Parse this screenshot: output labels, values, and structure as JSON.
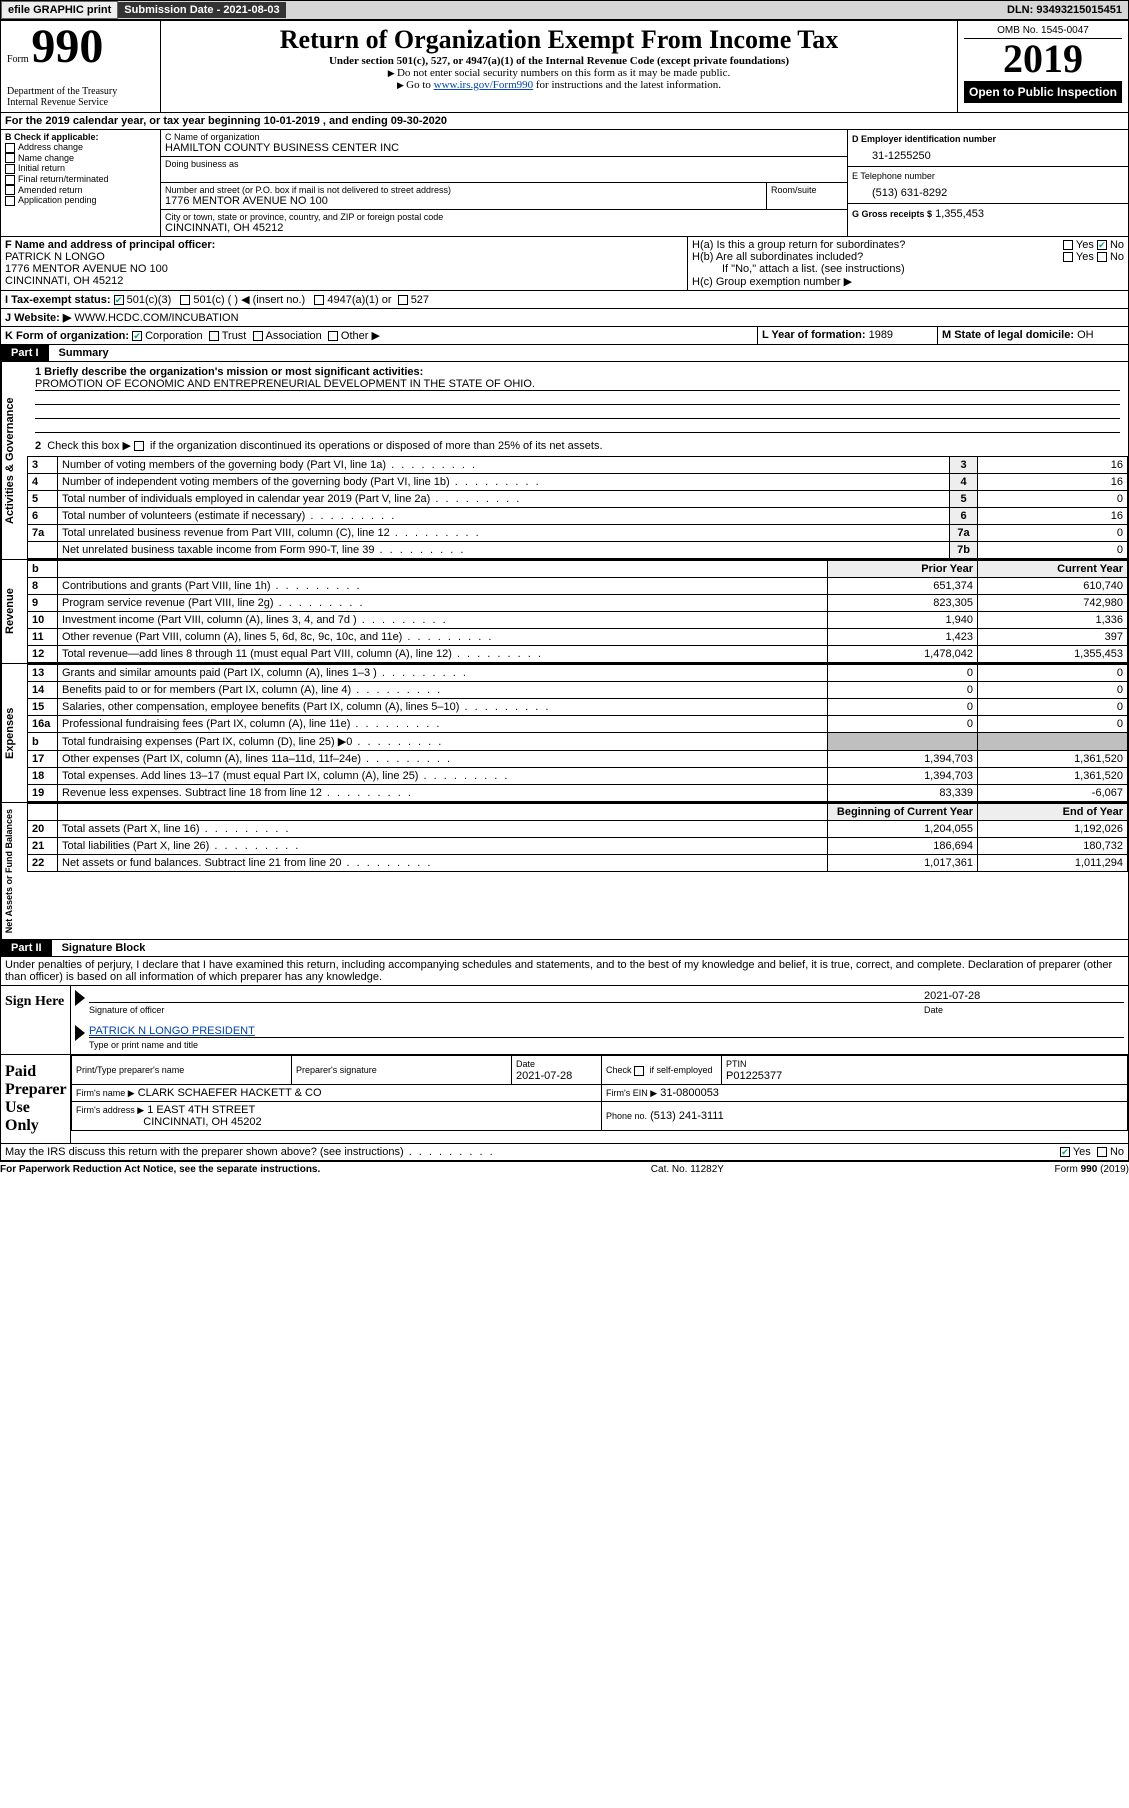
{
  "topbar": {
    "efile": "efile GRAPHIC print",
    "submission_label": "Submission Date - 2021-08-03",
    "dln": "DLN: 93493215015451"
  },
  "header": {
    "form_word": "Form",
    "form_num": "990",
    "dept1": "Department of the Treasury",
    "dept2": "Internal Revenue Service",
    "title": "Return of Organization Exempt From Income Tax",
    "subtitle": "Under section 501(c), 527, or 4947(a)(1) of the Internal Revenue Code (except private foundations)",
    "note1": "Do not enter social security numbers on this form as it may be made public.",
    "note2_pre": "Go to ",
    "note2_link": "www.irs.gov/Form990",
    "note2_post": " for instructions and the latest information.",
    "omb": "OMB No. 1545-0047",
    "year": "2019",
    "pub": "Open to Public Inspection"
  },
  "lineA": "For the 2019 calendar year, or tax year beginning 10-01-2019    , and ending 09-30-2020",
  "boxB": {
    "label": "B Check if applicable:",
    "items": [
      "Address change",
      "Name change",
      "Initial return",
      "Final return/terminated",
      "Amended return",
      "Application pending"
    ]
  },
  "boxC": {
    "name_label": "C Name of organization",
    "name": "HAMILTON COUNTY BUSINESS CENTER INC",
    "dba_label": "Doing business as",
    "addr_label": "Number and street (or P.O. box if mail is not delivered to street address)",
    "room_label": "Room/suite",
    "addr": "1776 MENTOR AVENUE NO 100",
    "city_label": "City or town, state or province, country, and ZIP or foreign postal code",
    "city": "CINCINNATI, OH  45212"
  },
  "boxD": {
    "label": "D Employer identification number",
    "value": "31-1255250"
  },
  "boxE": {
    "label": "E Telephone number",
    "value": "(513) 631-8292"
  },
  "boxG": {
    "label": "G Gross receipts $",
    "value": "1,355,453"
  },
  "boxF": {
    "label": "F Name and address of principal officer:",
    "l1": "PATRICK N LONGO",
    "l2": "1776 MENTOR AVENUE NO 100",
    "l3": "CINCINNATI, OH  45212"
  },
  "boxH": {
    "a": "H(a)  Is this a group return for subordinates?",
    "b": "H(b)  Are all subordinates included?",
    "b_note": "If \"No,\" attach a list. (see instructions)",
    "c": "H(c)  Group exemption number ▶",
    "yes": "Yes",
    "no": "No"
  },
  "boxI": {
    "label": "I  Tax-exempt status:",
    "o1": "501(c)(3)",
    "o2": "501(c) (   ) ◀ (insert no.)",
    "o3": "4947(a)(1) or",
    "o4": "527"
  },
  "boxJ": {
    "label": "J  Website: ▶",
    "value": "WWW.HCDC.COM/INCUBATION"
  },
  "boxK": {
    "label": "K Form of organization:",
    "o1": "Corporation",
    "o2": "Trust",
    "o3": "Association",
    "o4": "Other ▶"
  },
  "boxL": {
    "label": "L Year of formation:",
    "value": "1989"
  },
  "boxM": {
    "label": "M State of legal domicile:",
    "value": "OH"
  },
  "part1": {
    "hdr": "Part I",
    "title": "Summary"
  },
  "sumQ": {
    "q1a": "1  Briefly describe the organization's mission or most significant activities:",
    "q1b": "PROMOTION OF ECONOMIC AND ENTREPRENEURIAL DEVELOPMENT IN THE STATE OF OHIO.",
    "q2": "2    Check this box ▶        if the organization discontinued its operations or disposed of more than 25% of its net assets.",
    "rows": [
      {
        "n": "3",
        "t": "Number of voting members of the governing body (Part VI, line 1a)",
        "k": "3",
        "v": "16"
      },
      {
        "n": "4",
        "t": "Number of independent voting members of the governing body (Part VI, line 1b)",
        "k": "4",
        "v": "16"
      },
      {
        "n": "5",
        "t": "Total number of individuals employed in calendar year 2019 (Part V, line 2a)",
        "k": "5",
        "v": "0"
      },
      {
        "n": "6",
        "t": "Total number of volunteers (estimate if necessary)",
        "k": "6",
        "v": "16"
      },
      {
        "n": "7a",
        "t": "Total unrelated business revenue from Part VIII, column (C), line 12",
        "k": "7a",
        "v": "0"
      },
      {
        "n": "",
        "t": "Net unrelated business taxable income from Form 990-T, line 39",
        "k": "7b",
        "v": "0"
      }
    ]
  },
  "revHdr": {
    "b": "b",
    "prior": "Prior Year",
    "curr": "Current Year"
  },
  "revenue": [
    {
      "n": "8",
      "t": "Contributions and grants (Part VIII, line 1h)",
      "p": "651,374",
      "c": "610,740"
    },
    {
      "n": "9",
      "t": "Program service revenue (Part VIII, line 2g)",
      "p": "823,305",
      "c": "742,980"
    },
    {
      "n": "10",
      "t": "Investment income (Part VIII, column (A), lines 3, 4, and 7d )",
      "p": "1,940",
      "c": "1,336"
    },
    {
      "n": "11",
      "t": "Other revenue (Part VIII, column (A), lines 5, 6d, 8c, 9c, 10c, and 11e)",
      "p": "1,423",
      "c": "397"
    },
    {
      "n": "12",
      "t": "Total revenue—add lines 8 through 11 (must equal Part VIII, column (A), line 12)",
      "p": "1,478,042",
      "c": "1,355,453"
    }
  ],
  "expenses": [
    {
      "n": "13",
      "t": "Grants and similar amounts paid (Part IX, column (A), lines 1–3 )",
      "p": "0",
      "c": "0"
    },
    {
      "n": "14",
      "t": "Benefits paid to or for members (Part IX, column (A), line 4)",
      "p": "0",
      "c": "0"
    },
    {
      "n": "15",
      "t": "Salaries, other compensation, employee benefits (Part IX, column (A), lines 5–10)",
      "p": "0",
      "c": "0"
    },
    {
      "n": "16a",
      "t": "Professional fundraising fees (Part IX, column (A), line 11e)",
      "p": "0",
      "c": "0"
    },
    {
      "n": "b",
      "t": "Total fundraising expenses (Part IX, column (D), line 25) ▶0",
      "p": "",
      "c": ""
    },
    {
      "n": "17",
      "t": "Other expenses (Part IX, column (A), lines 11a–11d, 11f–24e)",
      "p": "1,394,703",
      "c": "1,361,520"
    },
    {
      "n": "18",
      "t": "Total expenses. Add lines 13–17 (must equal Part IX, column (A), line 25)",
      "p": "1,394,703",
      "c": "1,361,520"
    },
    {
      "n": "19",
      "t": "Revenue less expenses. Subtract line 18 from line 12",
      "p": "83,339",
      "c": "-6,067"
    }
  ],
  "netHdr": {
    "prior": "Beginning of Current Year",
    "curr": "End of Year"
  },
  "net": [
    {
      "n": "20",
      "t": "Total assets (Part X, line 16)",
      "p": "1,204,055",
      "c": "1,192,026"
    },
    {
      "n": "21",
      "t": "Total liabilities (Part X, line 26)",
      "p": "186,694",
      "c": "180,732"
    },
    {
      "n": "22",
      "t": "Net assets or fund balances. Subtract line 21 from line 20",
      "p": "1,017,361",
      "c": "1,011,294"
    }
  ],
  "vert": {
    "ag": "Activities & Governance",
    "rev": "Revenue",
    "exp": "Expenses",
    "net": "Net Assets or Fund Balances"
  },
  "part2": {
    "hdr": "Part II",
    "title": "Signature Block"
  },
  "perjury": "Under penalties of perjury, I declare that I have examined this return, including accompanying schedules and statements, and to the best of my knowledge and belief, it is true, correct, and complete. Declaration of preparer (other than officer) is based on all information of which preparer has any knowledge.",
  "sign": {
    "here": "Sign Here",
    "sig_label": "Signature of officer",
    "date_label": "Date",
    "date": "2021-07-28",
    "name": "PATRICK N LONGO  PRESIDENT",
    "name_label": "Type or print name and title"
  },
  "paid": {
    "here": "Paid Preparer Use Only",
    "h_name": "Print/Type preparer's name",
    "h_sig": "Preparer's signature",
    "h_date": "Date",
    "date": "2021-07-28",
    "check": "Check        if self-employed",
    "ptin_l": "PTIN",
    "ptin": "P01225377",
    "firm_name_l": "Firm's name    ▶",
    "firm_name": "CLARK SCHAEFER HACKETT & CO",
    "firm_ein_l": "Firm's EIN ▶",
    "firm_ein": "31-0800053",
    "firm_addr_l": "Firm's address ▶",
    "firm_addr1": "1 EAST 4TH STREET",
    "firm_addr2": "CINCINNATI, OH  45202",
    "phone_l": "Phone no.",
    "phone": "(513) 241-3111"
  },
  "discuss": "May the IRS discuss this return with the preparer shown above? (see instructions)",
  "footer": {
    "pra": "For Paperwork Reduction Act Notice, see the separate instructions.",
    "cat": "Cat. No. 11282Y",
    "form": "Form 990 (2019)"
  }
}
